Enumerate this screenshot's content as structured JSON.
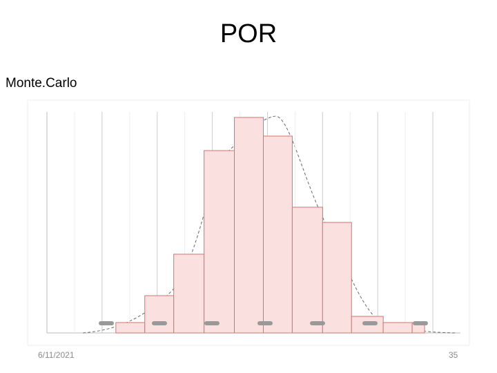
{
  "slide": {
    "title": "POR",
    "subtitle": "Monte.Carlo",
    "date": "6/11/2021",
    "page_number": "35"
  },
  "chart_data": {
    "type": "histogram",
    "bins": [
      2.5,
      3.55,
      4.6,
      5.7,
      6.8,
      7.85,
      8.9,
      10,
      11.05,
      12.2,
      13.25,
      13.7
    ],
    "counts": [
      15,
      54,
      114,
      264,
      312,
      285,
      182,
      160,
      24,
      15,
      15
    ],
    "color": "#fbe0e0",
    "edge_color": "#d9706f",
    "xlim": [
      0,
      15
    ],
    "ylim": [
      0,
      320
    ],
    "grid": true
  }
}
